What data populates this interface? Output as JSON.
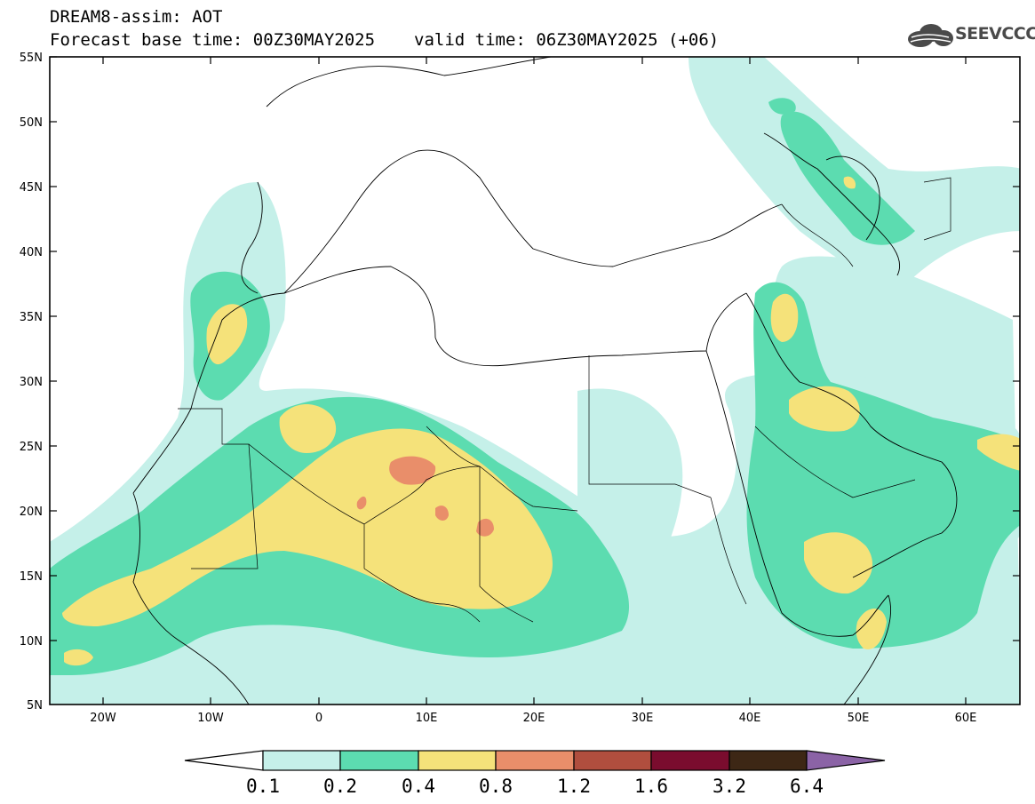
{
  "header": {
    "line1": "DREAM8-assim: AOT",
    "base_time": "Forecast base time: 00Z30MAY2025",
    "valid_time": "valid time: 06Z30MAY2025 (+06)"
  },
  "logo": {
    "text": "SEEVCCC",
    "icon": "cloud-logo-icon"
  },
  "axes": {
    "lat_labels": [
      "55N",
      "50N",
      "45N",
      "40N",
      "35N",
      "30N",
      "25N",
      "20N",
      "15N",
      "10N",
      "5N"
    ],
    "lon_labels": [
      "20W",
      "10W",
      "0",
      "10E",
      "20E",
      "30E",
      "40E",
      "50E",
      "60E"
    ]
  },
  "colorbar": {
    "labels": [
      "0.1",
      "0.2",
      "0.4",
      "0.8",
      "1.2",
      "1.6",
      "3.2",
      "6.4"
    ],
    "colors": [
      "#ffffff",
      "#c5f0e9",
      "#5cdcb0",
      "#f5e27a",
      "#e98e6a",
      "#b04e3e",
      "#7a0c2e",
      "#3d2715",
      "#8b63a6"
    ]
  },
  "palette": {
    "light": "#c5f0e9",
    "green": "#5cdcb0",
    "yellow": "#f5e27a",
    "orange": "#e98e6a"
  }
}
